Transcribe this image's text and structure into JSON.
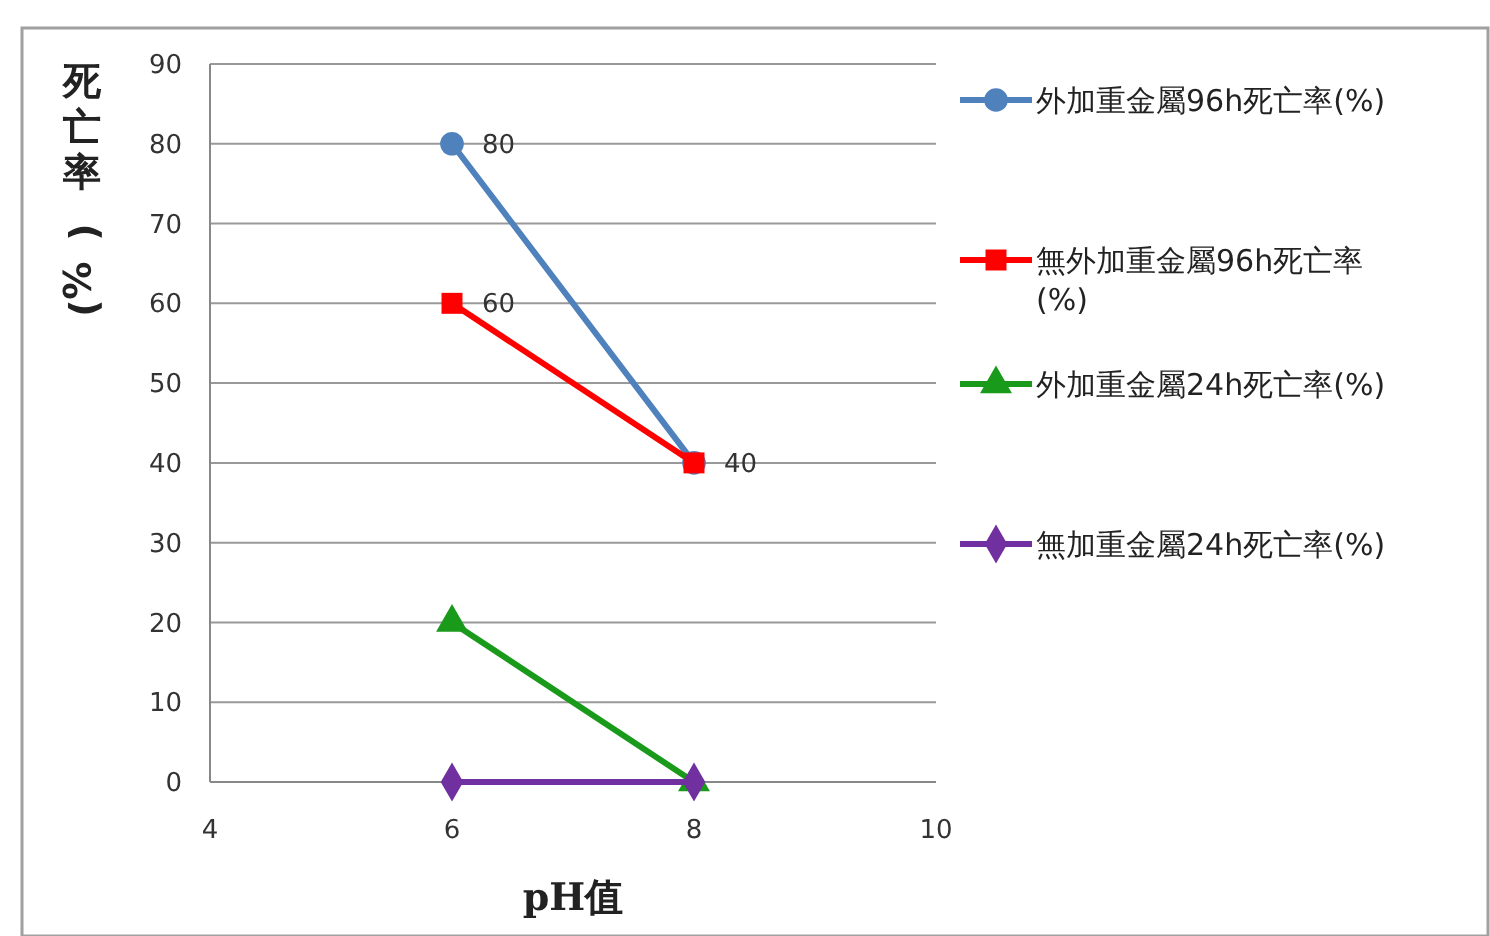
{
  "chart_data": {
    "type": "line",
    "xlabel": "pH值",
    "ylabel": "死亡率(%)",
    "x": [
      6,
      8
    ],
    "xlim": [
      4,
      10
    ],
    "xticks": [
      4,
      6,
      8,
      10
    ],
    "ylim": [
      0,
      90
    ],
    "yticks": [
      0,
      10,
      20,
      30,
      40,
      50,
      60,
      70,
      80,
      90
    ],
    "grid": "y",
    "legend": "right",
    "series": [
      {
        "name": "外加重金屬96h死亡率(%)",
        "color": "#4f81bd",
        "marker": "circle",
        "values": [
          80,
          40
        ],
        "value_labels": [
          "80",
          null
        ]
      },
      {
        "name": "無外加重金屬96h死亡率(%)",
        "color": "#ff0000",
        "marker": "square",
        "values": [
          60,
          40
        ],
        "value_labels": [
          "60",
          "40"
        ]
      },
      {
        "name": "外加重金屬24h死亡率(%)",
        "color": "#1a9a1a",
        "marker": "triangle",
        "values": [
          20,
          0
        ]
      },
      {
        "name": "無加重金屬24h死亡率(%)",
        "color": "#7030a0",
        "marker": "diamond",
        "values": [
          0,
          0
        ]
      }
    ]
  }
}
